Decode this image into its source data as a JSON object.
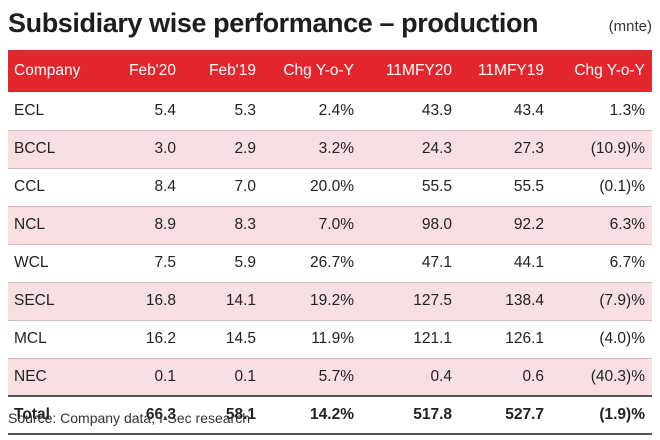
{
  "title": "Subsidiary wise performance – production",
  "unit": "(mnte)",
  "table": {
    "headers": [
      "Company",
      "Feb'20",
      "Feb'19",
      "Chg Y-o-Y",
      "11MFY20",
      "11MFY19",
      "Chg Y-o-Y"
    ],
    "rows": [
      [
        "ECL",
        "5.4",
        "5.3",
        "2.4%",
        "43.9",
        "43.4",
        "1.3%"
      ],
      [
        "BCCL",
        "3.0",
        "2.9",
        "3.2%",
        "24.3",
        "27.3",
        "(10.9)%"
      ],
      [
        "CCL",
        "8.4",
        "7.0",
        "20.0%",
        "55.5",
        "55.5",
        "(0.1)%"
      ],
      [
        "NCL",
        "8.9",
        "8.3",
        "7.0%",
        "98.0",
        "92.2",
        "6.3%"
      ],
      [
        "WCL",
        "7.5",
        "5.9",
        "26.7%",
        "47.1",
        "44.1",
        "6.7%"
      ],
      [
        "SECL",
        "16.8",
        "14.1",
        "19.2%",
        "127.5",
        "138.4",
        "(7.9)%"
      ],
      [
        "MCL",
        "16.2",
        "14.5",
        "11.9%",
        "121.1",
        "126.1",
        "(4.0)%"
      ],
      [
        "NEC",
        "0.1",
        "0.1",
        "5.7%",
        "0.4",
        "0.6",
        "(40.3)%"
      ]
    ],
    "total": [
      "Total",
      "66.3",
      "58.1",
      "14.2%",
      "517.8",
      "527.7",
      "(1.9)%"
    ]
  },
  "source": "Source: Company data, I-Sec research",
  "colors": {
    "header_bg": "#e3262d",
    "stripe_bg": "#f8dfe1"
  }
}
